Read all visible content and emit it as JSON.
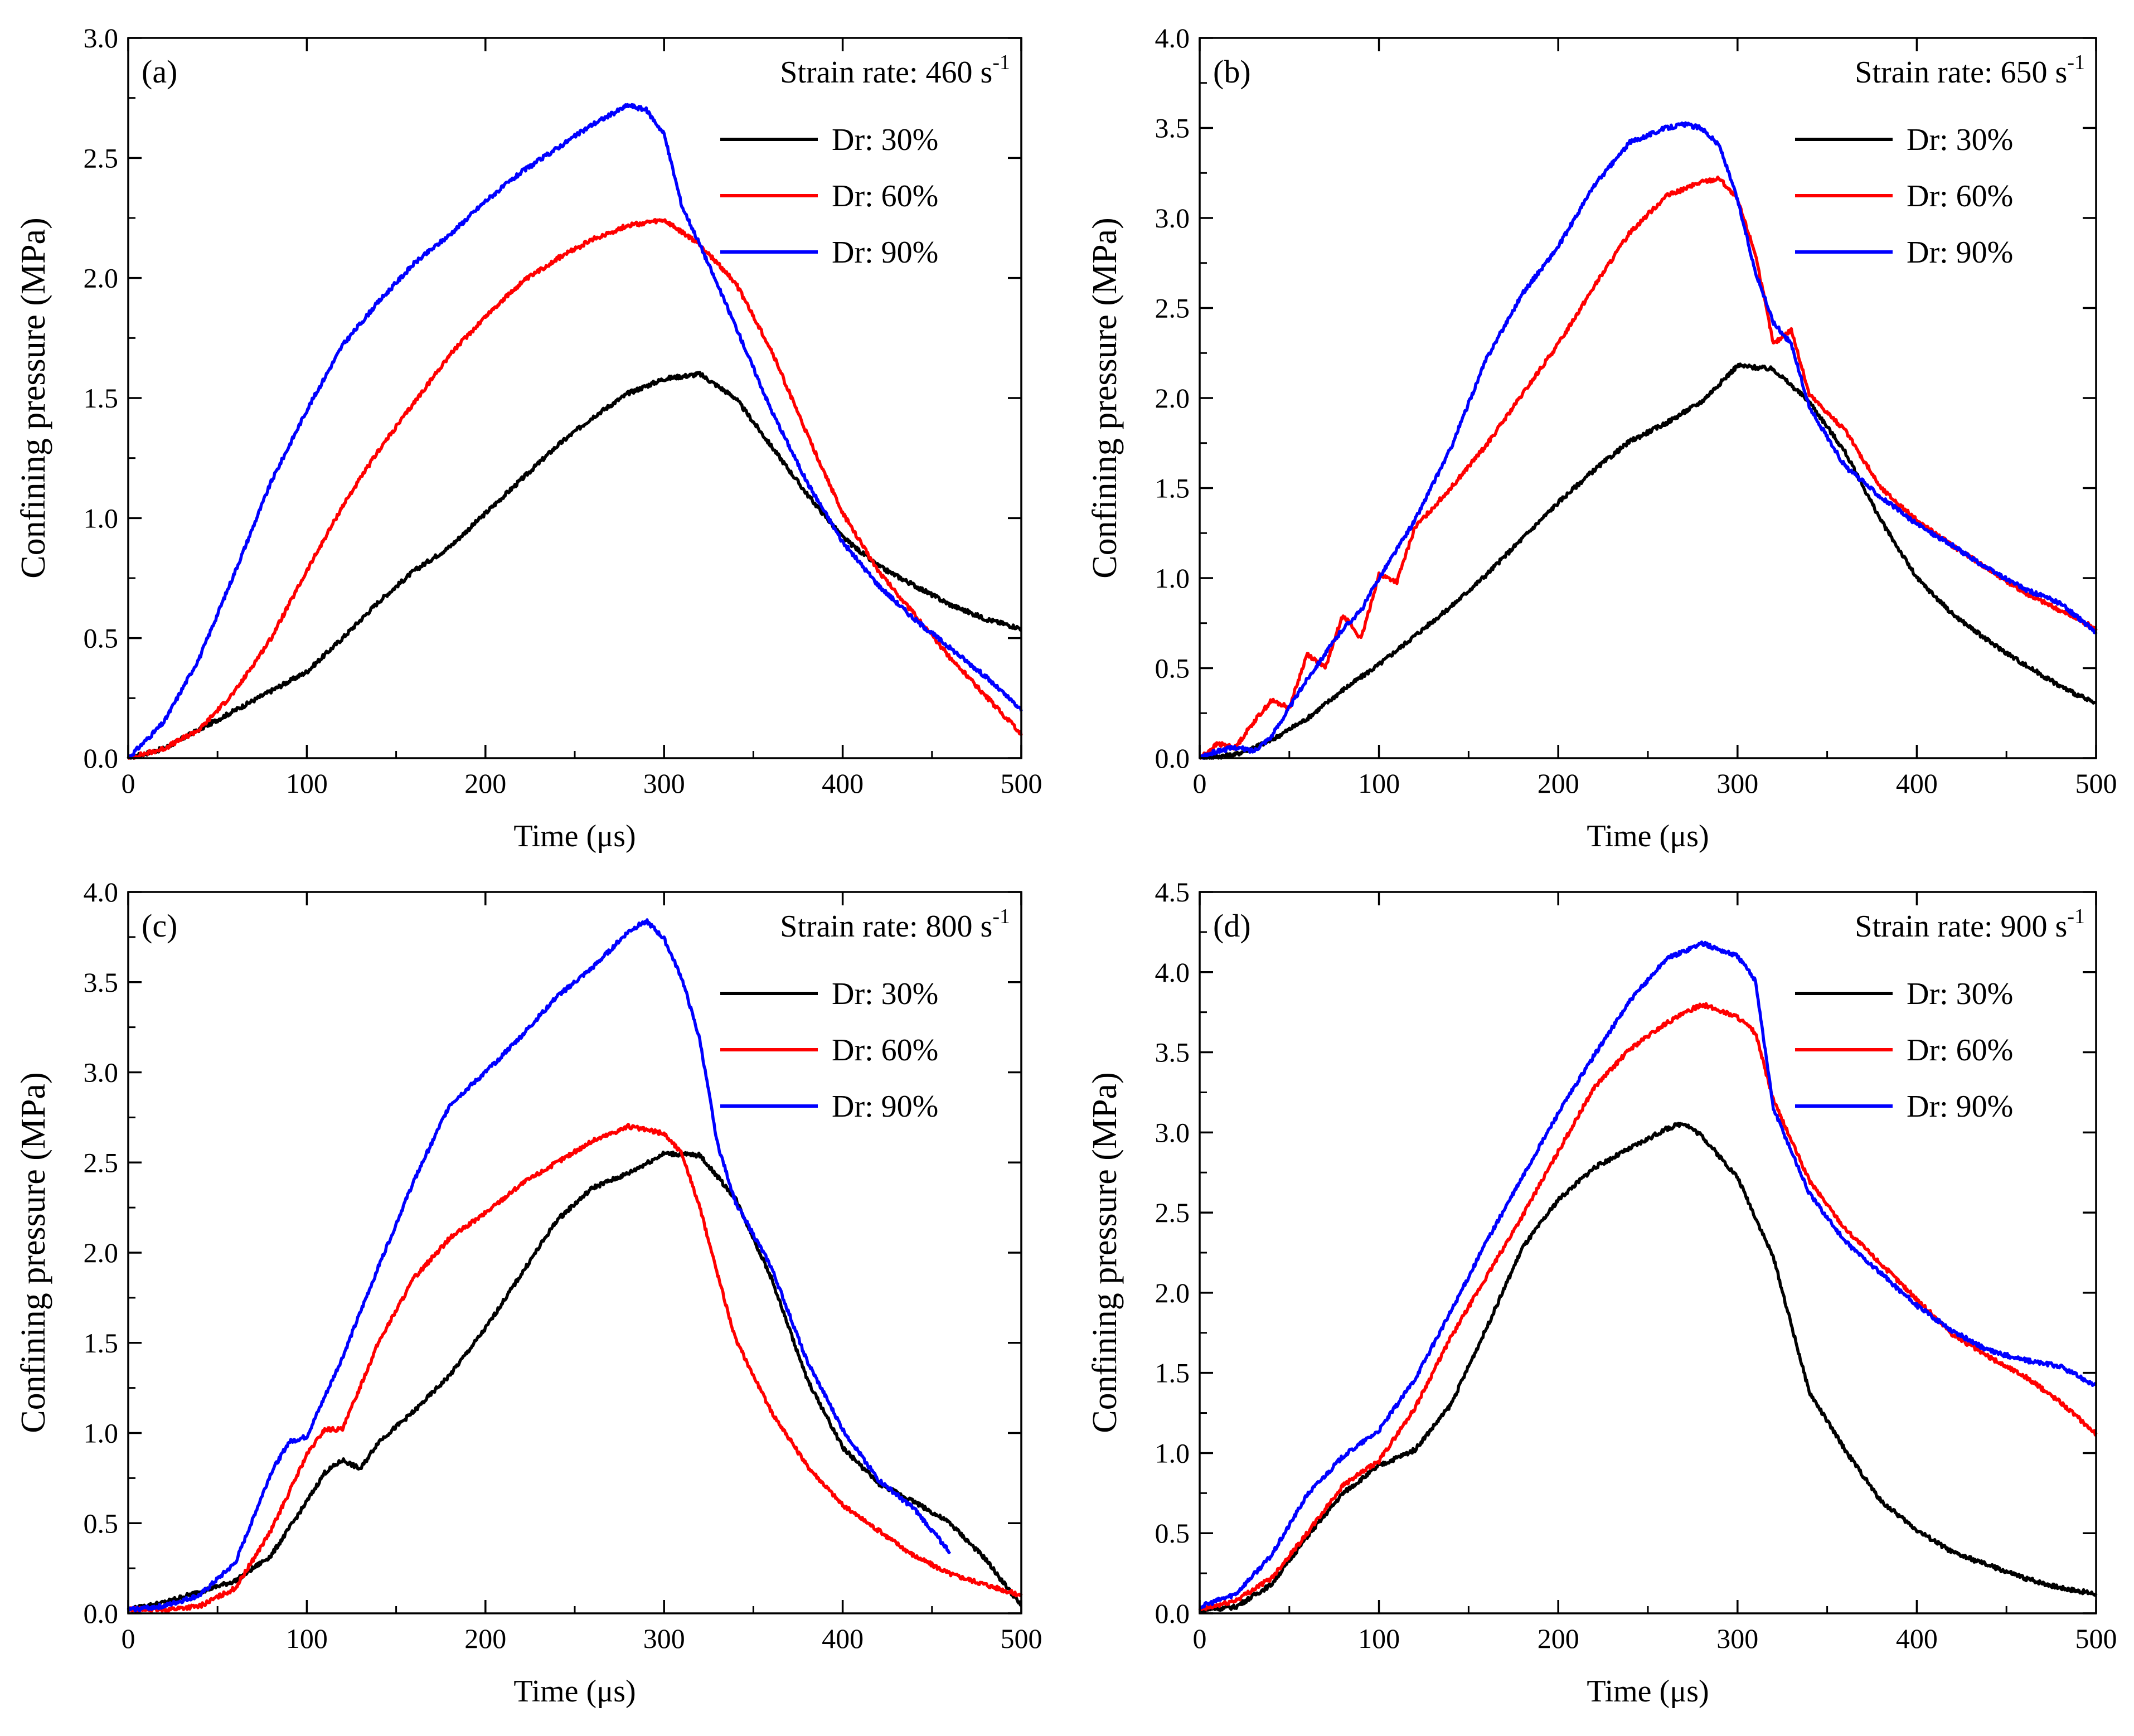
{
  "figure": {
    "panels": [
      {
        "id": "a",
        "panel_label": "(a)",
        "strain_label": "Strain rate: 460 s",
        "strain_sup": "-1"
      },
      {
        "id": "b",
        "panel_label": "(b)",
        "strain_label": "Strain rate: 650 s",
        "strain_sup": "-1"
      },
      {
        "id": "c",
        "panel_label": "(c)",
        "strain_label": "Strain rate: 800 s",
        "strain_sup": "-1"
      },
      {
        "id": "d",
        "panel_label": "(d)",
        "strain_label": "Strain rate: 900 s",
        "strain_sup": "-1"
      }
    ]
  },
  "chart_data": [
    {
      "type": "line",
      "title": "(a) Strain rate: 460 s-1",
      "xlabel": "Time (μs)",
      "ylabel": "Confining pressure (MPa)",
      "xlim": [
        0,
        500
      ],
      "ylim": [
        0,
        3.0
      ],
      "xticks": [
        0,
        100,
        200,
        300,
        400,
        500
      ],
      "yticks": [
        0.0,
        0.5,
        1.0,
        1.5,
        2.0,
        2.5,
        3.0
      ],
      "ytick_labels": [
        "0.0",
        "0.5",
        "1.0",
        "1.5",
        "2.0",
        "2.5",
        "3.0"
      ],
      "legend_position": "top-right",
      "series": [
        {
          "name": "Dr: 30%",
          "color": "#000000",
          "x": [
            0,
            20,
            40,
            60,
            80,
            100,
            120,
            140,
            160,
            180,
            200,
            220,
            240,
            260,
            280,
            300,
            320,
            340,
            360,
            380,
            400,
            420,
            440,
            460,
            480,
            500
          ],
          "y": [
            0.0,
            0.04,
            0.12,
            0.2,
            0.28,
            0.36,
            0.5,
            0.65,
            0.78,
            0.88,
            1.02,
            1.16,
            1.3,
            1.42,
            1.52,
            1.58,
            1.6,
            1.5,
            1.3,
            1.1,
            0.92,
            0.8,
            0.72,
            0.64,
            0.58,
            0.54
          ]
        },
        {
          "name": "Dr: 60%",
          "color": "#ff0000",
          "x": [
            0,
            20,
            40,
            60,
            80,
            100,
            120,
            140,
            160,
            180,
            200,
            220,
            240,
            260,
            280,
            300,
            320,
            340,
            360,
            380,
            400,
            420,
            440,
            460,
            480,
            500
          ],
          "y": [
            0.0,
            0.04,
            0.12,
            0.28,
            0.5,
            0.78,
            1.05,
            1.28,
            1.48,
            1.68,
            1.84,
            1.98,
            2.08,
            2.16,
            2.22,
            2.24,
            2.14,
            1.98,
            1.7,
            1.35,
            1.02,
            0.78,
            0.6,
            0.42,
            0.26,
            0.1
          ]
        },
        {
          "name": "Dr: 90%",
          "color": "#0000ff",
          "x": [
            0,
            20,
            40,
            60,
            80,
            100,
            120,
            140,
            160,
            180,
            200,
            220,
            240,
            260,
            280,
            290,
            300,
            310,
            320,
            340,
            360,
            380,
            400,
            420,
            440,
            460,
            480,
            500
          ],
          "y": [
            0.0,
            0.15,
            0.42,
            0.78,
            1.15,
            1.45,
            1.72,
            1.9,
            2.06,
            2.18,
            2.32,
            2.44,
            2.54,
            2.64,
            2.72,
            2.7,
            2.6,
            2.3,
            2.14,
            1.8,
            1.45,
            1.15,
            0.9,
            0.72,
            0.58,
            0.46,
            0.34,
            0.2
          ]
        }
      ]
    },
    {
      "type": "line",
      "title": "(b) Strain rate: 650 s-1",
      "xlabel": "Time (μs)",
      "ylabel": "Confining pressure (MPa)",
      "xlim": [
        0,
        500
      ],
      "ylim": [
        0,
        4.0
      ],
      "xticks": [
        0,
        100,
        200,
        300,
        400,
        500
      ],
      "yticks": [
        0.0,
        0.5,
        1.0,
        1.5,
        2.0,
        2.5,
        3.0,
        3.5,
        4.0
      ],
      "ytick_labels": [
        "0.0",
        "0.5",
        "1.0",
        "1.5",
        "2.0",
        "2.5",
        "3.0",
        "3.5",
        "4.0"
      ],
      "legend_position": "top-right",
      "series": [
        {
          "name": "Dr: 30%",
          "color": "#000000",
          "x": [
            0,
            20,
            40,
            60,
            80,
            100,
            120,
            140,
            160,
            180,
            200,
            220,
            240,
            260,
            280,
            300,
            320,
            340,
            360,
            380,
            400,
            420,
            440,
            460,
            480,
            500
          ],
          "y": [
            0.0,
            0.02,
            0.1,
            0.22,
            0.38,
            0.52,
            0.68,
            0.84,
            1.02,
            1.22,
            1.42,
            1.6,
            1.76,
            1.86,
            1.98,
            2.18,
            2.16,
            1.98,
            1.7,
            1.32,
            1.0,
            0.8,
            0.65,
            0.52,
            0.4,
            0.3
          ]
        },
        {
          "name": "Dr: 60%",
          "color": "#ff0000",
          "x": [
            0,
            10,
            20,
            30,
            40,
            50,
            60,
            70,
            80,
            90,
            100,
            110,
            120,
            140,
            160,
            180,
            200,
            220,
            240,
            260,
            280,
            290,
            300,
            310,
            320,
            330,
            340,
            360,
            380,
            400,
            420,
            440,
            460,
            480,
            500
          ],
          "y": [
            0.0,
            0.08,
            0.06,
            0.2,
            0.32,
            0.28,
            0.58,
            0.5,
            0.8,
            0.66,
            1.02,
            0.98,
            1.28,
            1.5,
            1.74,
            2.02,
            2.3,
            2.62,
            2.92,
            3.12,
            3.2,
            3.22,
            3.1,
            2.8,
            2.3,
            2.38,
            2.02,
            1.82,
            1.5,
            1.32,
            1.18,
            1.05,
            0.92,
            0.82,
            0.72
          ]
        },
        {
          "name": "Dr: 90%",
          "color": "#0000ff",
          "x": [
            0,
            10,
            20,
            30,
            40,
            50,
            60,
            70,
            80,
            90,
            100,
            110,
            120,
            140,
            160,
            180,
            200,
            220,
            240,
            260,
            270,
            280,
            290,
            300,
            310,
            320,
            330,
            340,
            360,
            380,
            400,
            420,
            440,
            460,
            480,
            500
          ],
          "y": [
            0.0,
            0.04,
            0.06,
            0.04,
            0.12,
            0.28,
            0.44,
            0.58,
            0.72,
            0.82,
            1.0,
            1.16,
            1.32,
            1.72,
            2.22,
            2.58,
            2.84,
            3.18,
            3.42,
            3.5,
            3.52,
            3.5,
            3.4,
            3.1,
            2.7,
            2.42,
            2.3,
            1.95,
            1.62,
            1.45,
            1.3,
            1.18,
            1.05,
            0.94,
            0.86,
            0.7
          ]
        }
      ]
    },
    {
      "type": "line",
      "title": "(c) Strain rate: 800 s-1",
      "xlabel": "Time (μs)",
      "ylabel": "Confining pressure (MPa)",
      "xlim": [
        0,
        500
      ],
      "ylim": [
        0,
        4.0
      ],
      "xticks": [
        0,
        100,
        200,
        300,
        400,
        500
      ],
      "yticks": [
        0.0,
        0.5,
        1.0,
        1.5,
        2.0,
        2.5,
        3.0,
        3.5,
        4.0
      ],
      "ytick_labels": [
        "0.0",
        "0.5",
        "1.0",
        "1.5",
        "2.0",
        "2.5",
        "3.0",
        "3.5",
        "4.0"
      ],
      "legend_position": "top-right",
      "series": [
        {
          "name": "Dr: 30%",
          "color": "#000000",
          "x": [
            0,
            20,
            40,
            60,
            80,
            100,
            110,
            120,
            130,
            140,
            160,
            180,
            200,
            220,
            240,
            260,
            280,
            300,
            320,
            340,
            360,
            380,
            400,
            420,
            440,
            460,
            480,
            500
          ],
          "y": [
            0.02,
            0.06,
            0.12,
            0.18,
            0.32,
            0.62,
            0.78,
            0.85,
            0.8,
            0.95,
            1.12,
            1.32,
            1.58,
            1.88,
            2.18,
            2.36,
            2.44,
            2.55,
            2.54,
            2.3,
            1.86,
            1.3,
            0.92,
            0.72,
            0.62,
            0.5,
            0.3,
            0.04
          ]
        },
        {
          "name": "Dr: 60%",
          "color": "#ff0000",
          "x": [
            0,
            20,
            40,
            60,
            80,
            100,
            110,
            120,
            140,
            160,
            180,
            200,
            220,
            240,
            260,
            280,
            300,
            310,
            320,
            330,
            340,
            360,
            380,
            400,
            420,
            440,
            460,
            480,
            500
          ],
          "y": [
            0.02,
            0.02,
            0.04,
            0.14,
            0.46,
            0.88,
            1.02,
            1.02,
            1.5,
            1.86,
            2.08,
            2.22,
            2.38,
            2.5,
            2.62,
            2.7,
            2.66,
            2.55,
            2.25,
            1.88,
            1.52,
            1.12,
            0.82,
            0.6,
            0.46,
            0.32,
            0.22,
            0.16,
            0.1
          ]
        },
        {
          "name": "Dr: 90%",
          "color": "#0000ff",
          "x": [
            0,
            20,
            40,
            60,
            80,
            90,
            100,
            120,
            140,
            160,
            180,
            200,
            220,
            240,
            260,
            280,
            290,
            300,
            310,
            320,
            330,
            340,
            360,
            380,
            400,
            420,
            440,
            460
          ],
          "y": [
            0.02,
            0.04,
            0.1,
            0.28,
            0.78,
            0.95,
            0.98,
            1.42,
            1.92,
            2.4,
            2.82,
            3.0,
            3.2,
            3.42,
            3.58,
            3.78,
            3.84,
            3.74,
            3.52,
            3.18,
            2.6,
            2.28,
            1.92,
            1.4,
            1.02,
            0.74,
            0.58,
            0.34
          ]
        }
      ]
    },
    {
      "type": "line",
      "title": "(d) Strain rate: 900 s-1",
      "xlabel": "Time (μs)",
      "ylabel": "Confining pressure (MPa)",
      "xlim": [
        0,
        500
      ],
      "ylim": [
        0,
        4.5
      ],
      "xticks": [
        0,
        100,
        200,
        300,
        400,
        500
      ],
      "yticks": [
        0.0,
        0.5,
        1.0,
        1.5,
        2.0,
        2.5,
        3.0,
        3.5,
        4.0,
        4.5
      ],
      "ytick_labels": [
        "0.0",
        "0.5",
        "1.0",
        "1.5",
        "2.0",
        "2.5",
        "3.0",
        "3.5",
        "4.0",
        "4.5"
      ],
      "legend_position": "top-right",
      "series": [
        {
          "name": "Dr: 30%",
          "color": "#000000",
          "x": [
            0,
            20,
            40,
            60,
            80,
            100,
            120,
            140,
            160,
            180,
            200,
            220,
            240,
            260,
            270,
            280,
            300,
            320,
            340,
            360,
            380,
            400,
            420,
            440,
            460,
            480,
            500
          ],
          "y": [
            0.02,
            0.04,
            0.18,
            0.48,
            0.75,
            0.92,
            1.02,
            1.3,
            1.78,
            2.28,
            2.58,
            2.78,
            2.9,
            3.02,
            3.06,
            2.98,
            2.72,
            2.22,
            1.38,
            1.02,
            0.7,
            0.52,
            0.38,
            0.3,
            0.22,
            0.16,
            0.12
          ]
        },
        {
          "name": "Dr: 60%",
          "color": "#ff0000",
          "x": [
            0,
            20,
            40,
            60,
            80,
            100,
            120,
            140,
            160,
            180,
            200,
            220,
            240,
            260,
            280,
            300,
            310,
            320,
            340,
            360,
            380,
            400,
            420,
            440,
            460,
            480,
            500
          ],
          "y": [
            0.02,
            0.08,
            0.22,
            0.5,
            0.8,
            0.95,
            1.28,
            1.72,
            2.1,
            2.48,
            2.88,
            3.28,
            3.52,
            3.68,
            3.8,
            3.72,
            3.62,
            3.2,
            2.7,
            2.4,
            2.18,
            1.96,
            1.74,
            1.6,
            1.48,
            1.32,
            1.12
          ]
        },
        {
          "name": "Dr: 90%",
          "color": "#0000ff",
          "x": [
            0,
            20,
            40,
            60,
            80,
            100,
            120,
            140,
            160,
            180,
            200,
            220,
            240,
            260,
            280,
            300,
            310,
            320,
            340,
            360,
            380,
            400,
            420,
            440,
            460,
            480,
            500
          ],
          "y": [
            0.04,
            0.12,
            0.36,
            0.74,
            0.98,
            1.14,
            1.46,
            1.88,
            2.32,
            2.72,
            3.12,
            3.48,
            3.82,
            4.08,
            4.18,
            4.1,
            3.95,
            3.15,
            2.62,
            2.32,
            2.12,
            1.92,
            1.76,
            1.64,
            1.58,
            1.54,
            1.42
          ]
        }
      ]
    }
  ]
}
